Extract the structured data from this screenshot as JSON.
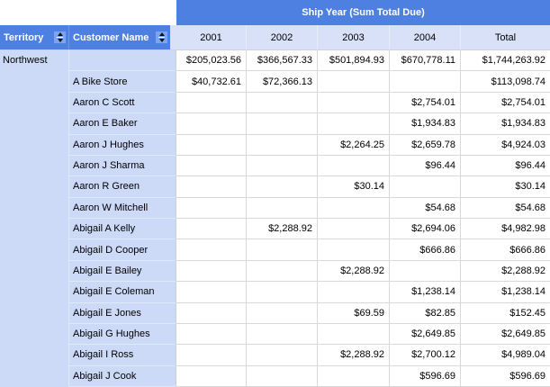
{
  "pivot_table": {
    "caption": "Ship Year (Sum Total Due)",
    "row_fields": {
      "territory_label": "Territory",
      "customer_label": "Customer Name",
      "sort_icon": "sort-up-down-icon"
    },
    "column_headers": [
      "2001",
      "2002",
      "2003",
      "2004",
      "Total"
    ],
    "territory_member": "Northwest",
    "rows": [
      [
        "",
        "$205,023.56",
        "$366,567.33",
        "$501,894.93",
        "$670,778.11",
        "$1,744,263.92"
      ],
      [
        "A Bike Store",
        "$40,732.61",
        "$72,366.13",
        "",
        "",
        "$113,098.74"
      ],
      [
        "Aaron C Scott",
        "",
        "",
        "",
        "$2,754.01",
        "$2,754.01"
      ],
      [
        "Aaron E Baker",
        "",
        "",
        "",
        "$1,934.83",
        "$1,934.83"
      ],
      [
        "Aaron J Hughes",
        "",
        "",
        "$2,264.25",
        "$2,659.78",
        "$4,924.03"
      ],
      [
        "Aaron J Sharma",
        "",
        "",
        "",
        "$96.44",
        "$96.44"
      ],
      [
        "Aaron R Green",
        "",
        "",
        "$30.14",
        "",
        "$30.14"
      ],
      [
        "Aaron W Mitchell",
        "",
        "",
        "",
        "$54.68",
        "$54.68"
      ],
      [
        "Abigail A Kelly",
        "",
        "$2,288.92",
        "",
        "$2,694.06",
        "$4,982.98"
      ],
      [
        "Abigail D Cooper",
        "",
        "",
        "",
        "$666.86",
        "$666.86"
      ],
      [
        "Abigail E Bailey",
        "",
        "",
        "$2,288.92",
        "",
        "$2,288.92"
      ],
      [
        "Abigail E Coleman",
        "",
        "",
        "",
        "$1,238.14",
        "$1,238.14"
      ],
      [
        "Abigail E Jones",
        "",
        "",
        "$69.59",
        "$82.85",
        "$152.45"
      ],
      [
        "Abigail G Hughes",
        "",
        "",
        "",
        "$2,649.85",
        "$2,649.85"
      ],
      [
        "Abigail I Ross",
        "",
        "",
        "$2,288.92",
        "$2,700.12",
        "$4,989.04"
      ],
      [
        "Abigail J Cook",
        "",
        "",
        "",
        "$596.69",
        "$596.69"
      ]
    ]
  },
  "colors": {
    "header_blue": "#4d80e0",
    "sort_box_blue": "#7fa3ee",
    "year_row_bg": "#d8e1f8",
    "row_header_bg": "#ccd9f7",
    "grid_line": "#d8d8d8",
    "header_text": "#ffffff",
    "body_text": "#000000"
  }
}
